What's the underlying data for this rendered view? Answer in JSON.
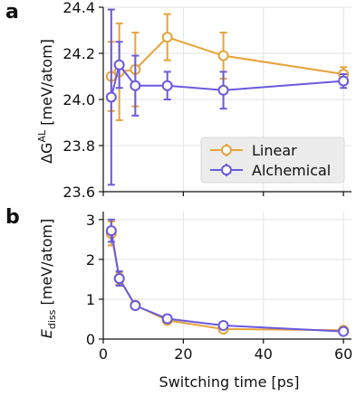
{
  "colors": {
    "linear": "#E8A23A",
    "alchemical": "#6A5ADE",
    "grid": "#e3e3e3",
    "axis": "#111111",
    "legend_bg": "#ececec"
  },
  "chart_data": [
    {
      "panel": "a",
      "type": "line",
      "ylabel": "ΔG^AL [meV/atom]",
      "ylabel_main": "ΔG",
      "ylabel_sup": "AL",
      "ylabel_rest": " [meV/atom]",
      "xlim": [
        0,
        62
      ],
      "ylim": [
        23.6,
        24.4
      ],
      "xticks": [
        0,
        20,
        40,
        60
      ],
      "yticks": [
        23.6,
        23.8,
        24.0,
        24.2,
        24.4
      ],
      "ytick_labels": [
        "23.6",
        "23.8",
        "24.0",
        "24.2",
        "24.4"
      ],
      "grid": true,
      "legend": "lower-right",
      "series": [
        {
          "name": "Linear",
          "color": "#E8A23A",
          "x": [
            2,
            4,
            8,
            16,
            30,
            60
          ],
          "y": [
            24.1,
            24.12,
            24.13,
            24.27,
            24.19,
            24.11
          ],
          "err": [
            0.15,
            0.21,
            0.16,
            0.1,
            0.1,
            0.03
          ]
        },
        {
          "name": "Alchemical",
          "color": "#6A5ADE",
          "x": [
            2,
            4,
            8,
            16,
            30,
            60
          ],
          "y": [
            24.01,
            24.15,
            24.06,
            24.06,
            24.04,
            24.08
          ],
          "err": [
            0.38,
            0.1,
            0.13,
            0.06,
            0.08,
            0.03
          ]
        }
      ]
    },
    {
      "panel": "b",
      "type": "line",
      "ylabel": "E_diss [meV/atom]",
      "ylabel_main": "E",
      "ylabel_sub": "diss",
      "ylabel_rest": " [meV/atom]",
      "xlabel": "Switching time [ps]",
      "xlim": [
        0,
        62
      ],
      "ylim": [
        0,
        3.2
      ],
      "xticks": [
        0,
        20,
        40,
        60
      ],
      "xtick_labels": [
        "0",
        "20",
        "40",
        "60"
      ],
      "yticks": [
        0,
        1,
        2,
        3
      ],
      "ytick_labels": [
        "0",
        "1",
        "2",
        "3"
      ],
      "grid": true,
      "series": [
        {
          "name": "Linear",
          "color": "#E8A23A",
          "x": [
            2,
            4,
            8,
            16,
            30,
            60
          ],
          "y": [
            2.65,
            1.52,
            0.85,
            0.47,
            0.25,
            0.22
          ],
          "err": [
            0.3,
            0.15,
            0.08,
            0.06,
            0.04,
            0.03
          ]
        },
        {
          "name": "Alchemical",
          "color": "#6A5ADE",
          "x": [
            2,
            4,
            8,
            16,
            30,
            60
          ],
          "y": [
            2.72,
            1.52,
            0.84,
            0.51,
            0.34,
            0.19
          ],
          "err": [
            0.28,
            0.18,
            0.08,
            0.07,
            0.04,
            0.03
          ]
        }
      ]
    }
  ]
}
